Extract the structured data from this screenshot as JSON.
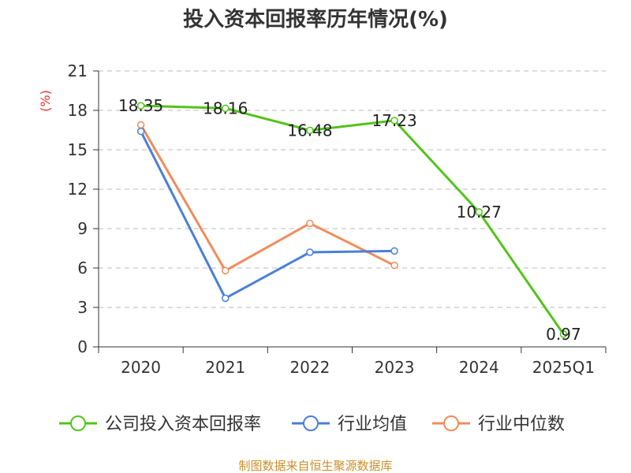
{
  "chart_data": {
    "type": "line",
    "title": "投入资本回报率历年情况(%)",
    "ylabel": "(%)",
    "xlabel": "",
    "categories": [
      "2020",
      "2021",
      "2022",
      "2023",
      "2024",
      "2025Q1"
    ],
    "yticks": [
      0,
      3,
      6,
      9,
      12,
      15,
      18,
      21
    ],
    "ylim": [
      0,
      21
    ],
    "grid": "horizontal-dashed",
    "legend_position": "bottom",
    "series": [
      {
        "name": "公司投入资本回报率",
        "color": "#52c41a",
        "values": [
          18.35,
          18.16,
          16.48,
          17.23,
          10.27,
          0.97
        ],
        "labels": [
          "18.35",
          "18.16",
          "16.48",
          "17.23",
          "10.27",
          "0.97"
        ]
      },
      {
        "name": "行业均值",
        "color": "#4a7fd9",
        "values": [
          16.4,
          3.7,
          7.2,
          7.3,
          null,
          null
        ]
      },
      {
        "name": "行业中位数",
        "color": "#f08c5a",
        "values": [
          16.9,
          5.8,
          9.4,
          6.2,
          null,
          null
        ]
      }
    ]
  },
  "source": "制图数据来自恒生聚源数据库"
}
